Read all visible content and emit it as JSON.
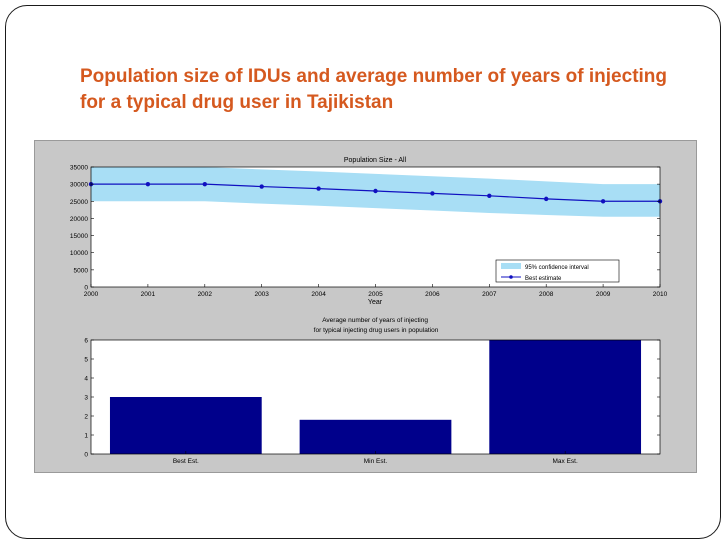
{
  "slide": {
    "title": "Population size of IDUs and average number of years of injecting for a typical drug user in Tajikistan"
  },
  "colors": {
    "title": "#d5591f",
    "confidence_band": "#a8def5",
    "best_estimate_line": "#1010c0",
    "bar_fill": "#00008b",
    "figure_background": "#c8c8c8"
  },
  "chart_data": [
    {
      "type": "line",
      "title": "Population Size - All",
      "xlabel": "Year",
      "ylabel": "",
      "x": [
        2000,
        2001,
        2002,
        2003,
        2004,
        2005,
        2006,
        2007,
        2008,
        2009,
        2010
      ],
      "xlim": [
        2000,
        2010
      ],
      "ylim": [
        0,
        35000
      ],
      "x_ticks": [
        "2000",
        "2001",
        "2002",
        "2003",
        "2004",
        "2005",
        "2006",
        "2007",
        "2008",
        "2009",
        "2010"
      ],
      "y_ticks": [
        "0",
        "5000",
        "10000",
        "15000",
        "20000",
        "25000",
        "30000",
        "35000"
      ],
      "series": [
        {
          "name": "Best estimate",
          "values": [
            30000,
            30000,
            30000,
            29300,
            28700,
            28000,
            27300,
            26600,
            25700,
            25000,
            25000
          ]
        }
      ],
      "band": {
        "name": "95% confidence interval",
        "lower": [
          25000,
          25000,
          25000,
          24300,
          23700,
          23000,
          22300,
          21600,
          21000,
          20500,
          20500
        ],
        "upper": [
          35000,
          35000,
          35000,
          34300,
          33700,
          33000,
          32300,
          31600,
          30800,
          30000,
          30000
        ]
      },
      "legend": "bottom-right",
      "grid": false
    },
    {
      "type": "bar",
      "title": "Average number of years of injecting\nfor typical injecting drug users in population",
      "xlabel": "",
      "ylabel": "",
      "categories": [
        "Best Est.",
        "Min Est.",
        "Max Est."
      ],
      "values": [
        3,
        1.8,
        6
      ],
      "ylim": [
        0,
        6
      ],
      "y_ticks": [
        "0",
        "1",
        "2",
        "3",
        "4",
        "5",
        "6"
      ],
      "grid": false
    }
  ]
}
